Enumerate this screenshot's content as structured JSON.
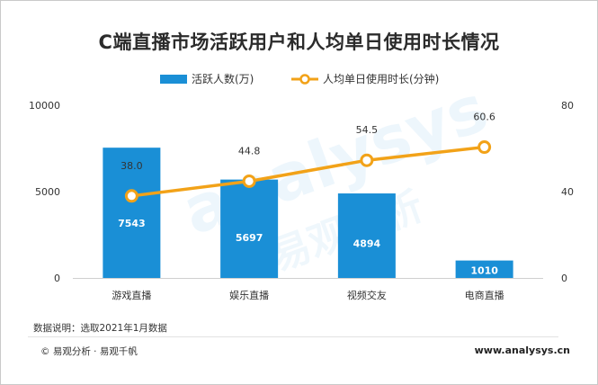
{
  "chart_data": {
    "type": "bar+line",
    "title": "C端直播市场活跃用户和人均单日使用时长情况",
    "categories": [
      "游戏直播",
      "娱乐直播",
      "视频交友",
      "电商直播"
    ],
    "series": [
      {
        "name": "活跃人数(万)",
        "type": "bar",
        "axis": "left",
        "values": [
          7543,
          5697,
          4894,
          1010
        ],
        "labels": [
          "7543",
          "5697",
          "4894",
          "1010"
        ],
        "color": "#1a8fd6"
      },
      {
        "name": "人均单日使用时长(分钟)",
        "type": "line",
        "axis": "right",
        "values": [
          38.0,
          44.8,
          54.5,
          60.6
        ],
        "labels": [
          "38.0",
          "44.8",
          "54.5",
          "60.6"
        ],
        "color": "#f2a218",
        "marker_fill": "#ffffff"
      }
    ],
    "y_left": {
      "ylim": [
        0,
        10000
      ],
      "ticks": [
        0,
        5000,
        10000
      ],
      "tick_labels": [
        "0",
        "5000",
        "10000"
      ]
    },
    "y_right": {
      "ylim": [
        0,
        80
      ],
      "ticks": [
        0,
        40,
        80
      ],
      "tick_labels": [
        "0",
        "40",
        "80"
      ]
    },
    "grid": false,
    "legend": "top-center"
  },
  "footer": {
    "data_note": "数据说明：选取2021年1月数据",
    "source": "©  易观分析 · 易观千帆",
    "website": "www.analysys.cn"
  },
  "watermark": {
    "text": "analysys",
    "text_cn": "易观分析"
  }
}
